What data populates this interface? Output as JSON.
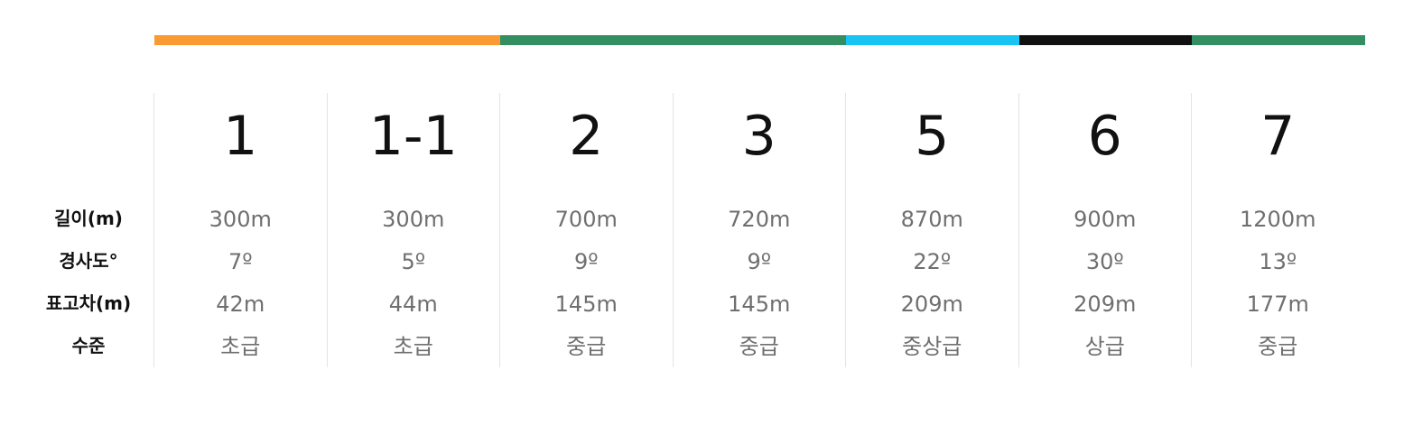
{
  "color_bar": [
    {
      "color": "#f99a33",
      "flex": 2
    },
    {
      "color": "#338f61",
      "flex": 2
    },
    {
      "color": "#17c4f2",
      "flex": 1
    },
    {
      "color": "#111111",
      "flex": 1
    },
    {
      "color": "#338f61",
      "flex": 1
    }
  ],
  "row_labels": [
    "길이(m)",
    "경사도°",
    "표고차(m)",
    "수준"
  ],
  "courses": [
    {
      "name": "1",
      "length": "300m",
      "slope": "7º",
      "elevation": "42m",
      "level": "초급"
    },
    {
      "name": "1-1",
      "length": "300m",
      "slope": "5º",
      "elevation": "44m",
      "level": "초급"
    },
    {
      "name": "2",
      "length": "700m",
      "slope": "9º",
      "elevation": "145m",
      "level": "중급"
    },
    {
      "name": "3",
      "length": "720m",
      "slope": "9º",
      "elevation": "145m",
      "level": "중급"
    },
    {
      "name": "5",
      "length": "870m",
      "slope": "22º",
      "elevation": "209m",
      "level": "중상급"
    },
    {
      "name": "6",
      "length": "900m",
      "slope": "30º",
      "elevation": "209m",
      "level": "상급"
    },
    {
      "name": "7",
      "length": "1200m",
      "slope": "13º",
      "elevation": "177m",
      "level": "중급"
    }
  ]
}
